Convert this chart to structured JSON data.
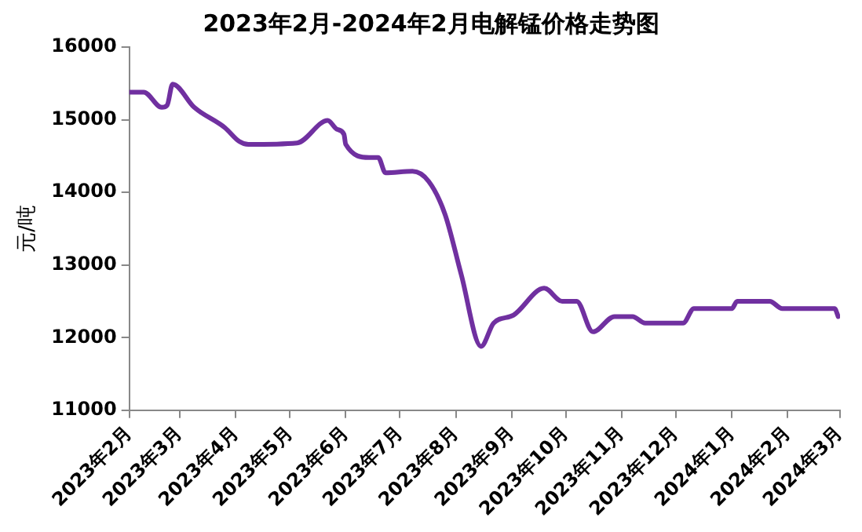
{
  "chart_data": {
    "type": "line",
    "title": "2023年2月-2024年2月电解锰价格走势图",
    "ylabel": "元/吨",
    "x": [
      "2023-02-01",
      "2023-02-09",
      "2023-02-19",
      "2023-02-22",
      "2023-02-25",
      "2023-03-09",
      "2023-03-26",
      "2023-04-03",
      "2023-04-08",
      "2023-05-05",
      "2023-05-22",
      "2023-05-27",
      "2023-05-31",
      "2023-06-01",
      "2023-06-14",
      "2023-06-19",
      "2023-06-23",
      "2023-07-08",
      "2023-07-17",
      "2023-07-26",
      "2023-08-04",
      "2023-08-15",
      "2023-08-22",
      "2023-09-02",
      "2023-09-19",
      "2023-09-29",
      "2023-10-07",
      "2023-10-16",
      "2023-10-28",
      "2023-11-07",
      "2023-11-14",
      "2023-12-05",
      "2023-12-11",
      "2024-01-01",
      "2024-01-04",
      "2024-01-22",
      "2024-01-29",
      "2024-02-27",
      "2024-02-29"
    ],
    "series": [
      {
        "color": "#7030a0",
        "values": [
          15380,
          15380,
          15170,
          15200,
          15490,
          15170,
          14890,
          14700,
          14660,
          14680,
          14990,
          14870,
          14800,
          14660,
          14480,
          14480,
          14270,
          14290,
          14150,
          13700,
          12870,
          11880,
          12200,
          12310,
          12680,
          12500,
          12500,
          12080,
          12290,
          12290,
          12200,
          12200,
          12400,
          12400,
          12500,
          12500,
          12400,
          12400,
          12290
        ]
      }
    ],
    "xlim": [
      "2023-02",
      "2024-03"
    ],
    "xticks": [
      {
        "value": "2023-02",
        "label": "2023年2月"
      },
      {
        "value": "2023-03",
        "label": "2023年3月"
      },
      {
        "value": "2023-04",
        "label": "2023年4月"
      },
      {
        "value": "2023-05",
        "label": "2023年5月"
      },
      {
        "value": "2023-06",
        "label": "2023年6月"
      },
      {
        "value": "2023-07",
        "label": "2023年7月"
      },
      {
        "value": "2023-08",
        "label": "2023年8月"
      },
      {
        "value": "2023-09",
        "label": "2023年9月"
      },
      {
        "value": "2023-10",
        "label": "2023年10月"
      },
      {
        "value": "2023-11",
        "label": "2023年11月"
      },
      {
        "value": "2023-12",
        "label": "2023年12月"
      },
      {
        "value": "2024-01",
        "label": "2024年1月"
      },
      {
        "value": "2024-02",
        "label": "2024年2月"
      },
      {
        "value": "2024-03",
        "label": "2024年3月"
      }
    ],
    "ylim": [
      11000,
      16000
    ],
    "yticks": [
      11000,
      12000,
      13000,
      14000,
      15000,
      16000
    ],
    "grid": false,
    "legend": false,
    "marker": "none",
    "line_style": "solid"
  }
}
